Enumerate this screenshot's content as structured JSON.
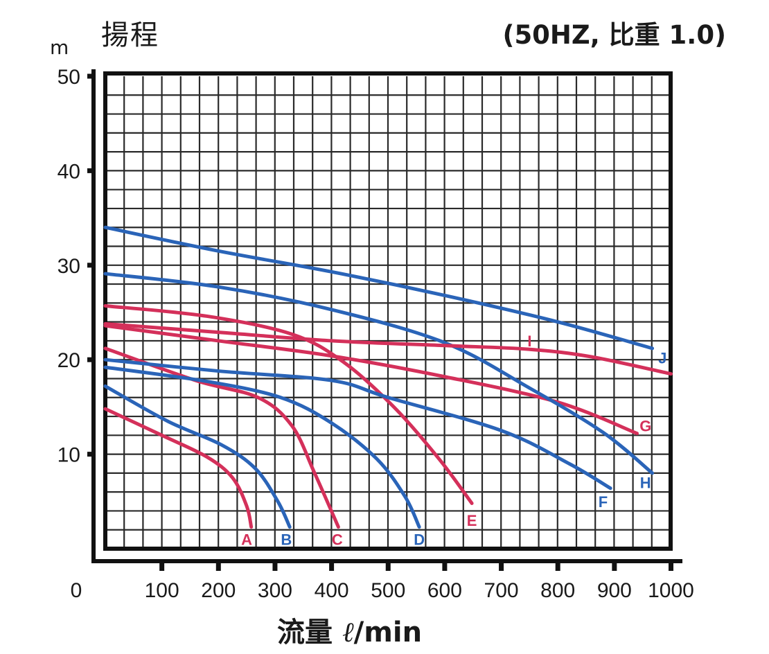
{
  "header": {
    "title": "揚程",
    "subtitle": "(50HZ, 比重 1.0)",
    "y_unit": "m"
  },
  "xaxis_label": {
    "prefix": "流量",
    "unit_symbol": "ℓ",
    "suffix": "/min"
  },
  "colors": {
    "red": "#d4305a",
    "blue": "#2a64b8",
    "grid": "#2a2a2a",
    "frame": "#111111"
  },
  "chart_data": {
    "type": "line",
    "title": "揚程 (50HZ, 比重 1.0)",
    "xlabel": "流量 ℓ/min",
    "ylabel": "揚程 m",
    "xlim": [
      0,
      1000
    ],
    "ylim": [
      0,
      50
    ],
    "x_ticks": [
      0,
      100,
      200,
      300,
      400,
      500,
      600,
      700,
      800,
      900,
      1000
    ],
    "y_ticks": [
      10,
      20,
      30,
      40,
      50
    ],
    "grid": true,
    "grid_step_x": 33.33,
    "grid_step_y": 2,
    "legend": "inline labels at curve ends",
    "series": [
      {
        "name": "A",
        "color": "red",
        "x": [
          0,
          100,
          180,
          225,
          250,
          258
        ],
        "y": [
          14.8,
          12.0,
          9.7,
          7.5,
          4.5,
          2.3
        ],
        "label_at": [
          250,
          1.0
        ]
      },
      {
        "name": "B",
        "color": "blue",
        "x": [
          0,
          110,
          205,
          265,
          305,
          326
        ],
        "y": [
          17.2,
          13.5,
          11.0,
          8.5,
          5.0,
          2.3
        ],
        "label_at": [
          320,
          1.0
        ]
      },
      {
        "name": "C",
        "color": "red",
        "x": [
          0,
          160,
          270,
          330,
          370,
          412
        ],
        "y": [
          21.2,
          17.8,
          16.0,
          13.0,
          8.0,
          2.3
        ],
        "label_at": [
          410,
          1.0
        ]
      },
      {
        "name": "D",
        "color": "blue",
        "x": [
          0,
          180,
          310,
          400,
          480,
          530,
          555
        ],
        "y": [
          19.2,
          17.7,
          16.0,
          13.3,
          9.5,
          5.5,
          2.3
        ],
        "label_at": [
          555,
          1.0
        ]
      },
      {
        "name": "E",
        "color": "red",
        "x": [
          0,
          180,
          330,
          420,
          510,
          590,
          648
        ],
        "y": [
          25.7,
          24.6,
          22.7,
          19.8,
          15.0,
          9.5,
          4.8
        ],
        "label_at": [
          648,
          3.0
        ]
      },
      {
        "name": "F",
        "color": "blue",
        "x": [
          0,
          200,
          400,
          500,
          700,
          820,
          893
        ],
        "y": [
          20.0,
          18.8,
          17.8,
          16.0,
          12.5,
          9.0,
          6.4
        ],
        "label_at": [
          880,
          5.0
        ]
      },
      {
        "name": "G",
        "color": "red",
        "x": [
          0,
          200,
          400,
          600,
          800,
          940
        ],
        "y": [
          23.6,
          22.0,
          20.4,
          18.2,
          15.5,
          12.2
        ],
        "label_at": [
          955,
          13.0
        ]
      },
      {
        "name": "H",
        "color": "blue",
        "x": [
          0,
          200,
          400,
          600,
          750,
          880,
          967
        ],
        "y": [
          29.1,
          27.7,
          25.3,
          21.8,
          17.0,
          12.3,
          8.0
        ],
        "label_at": [
          955,
          7.0
        ]
      },
      {
        "name": "I",
        "color": "red",
        "x": [
          0,
          200,
          400,
          600,
          750,
          860,
          1000
        ],
        "y": [
          23.8,
          22.9,
          22.0,
          21.5,
          21.1,
          20.3,
          18.5
        ],
        "label_at": [
          750,
          22.0
        ]
      },
      {
        "name": "J",
        "color": "blue",
        "x": [
          0,
          200,
          400,
          600,
          800,
          967
        ],
        "y": [
          34.0,
          31.5,
          29.3,
          26.8,
          24.0,
          21.2
        ],
        "label_at": [
          985,
          20.2
        ]
      }
    ]
  }
}
